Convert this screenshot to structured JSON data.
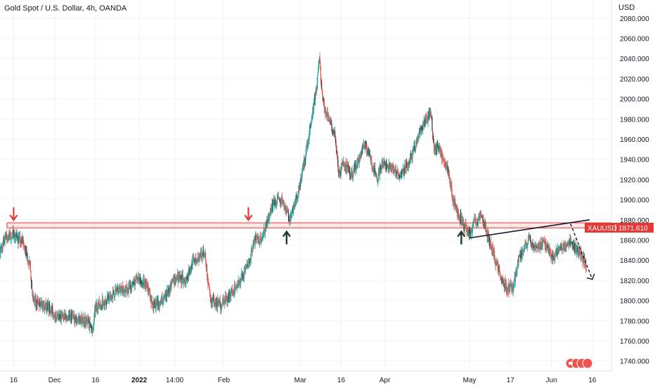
{
  "header": {
    "title": "Gold Spot / U.S. Dollar, 4h, OANDA",
    "currency": "USD"
  },
  "price_tag": {
    "symbol": "XAUUSD",
    "value": "1871.610"
  },
  "colors": {
    "up": "#26a69a",
    "down": "#ef5350",
    "candle_dark": "#2e3b36",
    "zone": "#e53935",
    "arrow_red": "#e53935",
    "arrow_dark": "#1b3a2b",
    "trendline": "#131722",
    "grid": "#f0f3fa",
    "axis_text": "#131722",
    "tag_bg": "#e53935"
  },
  "annotations": {
    "resistance_zone": {
      "low": 1872,
      "high": 1877
    },
    "trendline": {
      "from": {
        "x": "May 02",
        "y": 1862
      },
      "to": {
        "x": "Jun 15",
        "y": 1880
      }
    },
    "red_arrows": [
      {
        "x": "Nov 16",
        "y": 1877,
        "direction": "down"
      },
      {
        "x": "Feb 10",
        "y": 1877,
        "direction": "down"
      }
    ],
    "dark_arrows": [
      {
        "x": "Feb 24",
        "y": 1871,
        "direction": "up"
      },
      {
        "x": "Apr 29",
        "y": 1871,
        "direction": "up"
      }
    ],
    "projection": {
      "from": {
        "x": "Jun 08",
        "y": 1876
      },
      "to": {
        "x": "Jun 16",
        "y": 1821
      },
      "style": "dashed-arrow"
    }
  },
  "chart_data": {
    "type": "candlestick",
    "title": "Gold Spot / U.S. Dollar, 4h, OANDA",
    "ylabel": "USD",
    "ylim": [
      1730,
      2098
    ],
    "yticks": [
      2080,
      2060,
      2040,
      2020,
      2000,
      1980,
      1960,
      1940,
      1920,
      1900,
      1880,
      1860,
      1840,
      1820,
      1800,
      1780,
      1760,
      1740
    ],
    "xticks": [
      {
        "label": "16",
        "date": "2021-11-16"
      },
      {
        "label": "Dec",
        "date": "2021-12-01"
      },
      {
        "label": "16",
        "date": "2021-12-16"
      },
      {
        "label": "2022",
        "date": "2022-01-01"
      },
      {
        "label": "14:00",
        "date": "2022-01-14"
      },
      {
        "label": "Feb",
        "date": "2022-02-01"
      },
      {
        "label": "Mar",
        "date": "2022-03-01"
      },
      {
        "label": "16",
        "date": "2022-03-16"
      },
      {
        "label": "Apr",
        "date": "2022-04-01"
      },
      {
        "label": "May",
        "date": "2022-05-02"
      },
      {
        "label": "17",
        "date": "2022-05-17"
      },
      {
        "label": "Jun",
        "date": "2022-06-01"
      },
      {
        "label": "16",
        "date": "2022-06-16"
      }
    ],
    "xrange": [
      "2021-11-11",
      "2022-06-23"
    ],
    "close_path": [
      [
        "2021-11-11",
        1848
      ],
      [
        "2021-11-13",
        1862
      ],
      [
        "2021-11-16",
        1866
      ],
      [
        "2021-11-18",
        1860
      ],
      [
        "2021-11-19",
        1860
      ],
      [
        "2021-11-22",
        1835
      ],
      [
        "2021-11-23",
        1800
      ],
      [
        "2021-11-26",
        1795
      ],
      [
        "2021-11-29",
        1793
      ],
      [
        "2021-12-02",
        1782
      ],
      [
        "2021-12-06",
        1785
      ],
      [
        "2021-12-09",
        1782
      ],
      [
        "2021-12-13",
        1780
      ],
      [
        "2021-12-15",
        1770
      ],
      [
        "2021-12-16",
        1795
      ],
      [
        "2021-12-20",
        1800
      ],
      [
        "2021-12-24",
        1810
      ],
      [
        "2021-12-28",
        1812
      ],
      [
        "2021-12-31",
        1820
      ],
      [
        "2022-01-04",
        1815
      ],
      [
        "2022-01-06",
        1795
      ],
      [
        "2022-01-10",
        1800
      ],
      [
        "2022-01-14",
        1822
      ],
      [
        "2022-01-18",
        1820
      ],
      [
        "2022-01-21",
        1840
      ],
      [
        "2022-01-25",
        1848
      ],
      [
        "2022-01-27",
        1800
      ],
      [
        "2022-01-31",
        1795
      ],
      [
        "2022-02-03",
        1805
      ],
      [
        "2022-02-07",
        1820
      ],
      [
        "2022-02-10",
        1835
      ],
      [
        "2022-02-12",
        1858
      ],
      [
        "2022-02-15",
        1862
      ],
      [
        "2022-02-17",
        1880
      ],
      [
        "2022-02-19",
        1895
      ],
      [
        "2022-02-22",
        1900
      ],
      [
        "2022-02-24",
        1890
      ],
      [
        "2022-02-25",
        1880
      ],
      [
        "2022-02-28",
        1905
      ],
      [
        "2022-03-02",
        1930
      ],
      [
        "2022-03-04",
        1960
      ],
      [
        "2022-03-06",
        1995
      ],
      [
        "2022-03-07",
        2010
      ],
      [
        "2022-03-08",
        2040
      ],
      [
        "2022-03-09",
        2005
      ],
      [
        "2022-03-10",
        1990
      ],
      [
        "2022-03-11",
        1985
      ],
      [
        "2022-03-14",
        1960
      ],
      [
        "2022-03-15",
        1925
      ],
      [
        "2022-03-17",
        1935
      ],
      [
        "2022-03-20",
        1925
      ],
      [
        "2022-03-24",
        1950
      ],
      [
        "2022-03-25",
        1955
      ],
      [
        "2022-03-29",
        1920
      ],
      [
        "2022-03-31",
        1935
      ],
      [
        "2022-04-04",
        1930
      ],
      [
        "2022-04-07",
        1925
      ],
      [
        "2022-04-11",
        1945
      ],
      [
        "2022-04-14",
        1970
      ],
      [
        "2022-04-18",
        1985
      ],
      [
        "2022-04-19",
        1950
      ],
      [
        "2022-04-21",
        1950
      ],
      [
        "2022-04-24",
        1930
      ],
      [
        "2022-04-26",
        1900
      ],
      [
        "2022-04-28",
        1885
      ],
      [
        "2022-05-02",
        1865
      ],
      [
        "2022-05-04",
        1878
      ],
      [
        "2022-05-06",
        1885
      ],
      [
        "2022-05-08",
        1870
      ],
      [
        "2022-05-10",
        1855
      ],
      [
        "2022-05-12",
        1835
      ],
      [
        "2022-05-14",
        1820
      ],
      [
        "2022-05-16",
        1812
      ],
      [
        "2022-05-18",
        1812
      ],
      [
        "2022-05-20",
        1842
      ],
      [
        "2022-05-24",
        1862
      ],
      [
        "2022-05-26",
        1852
      ],
      [
        "2022-05-29",
        1857
      ],
      [
        "2022-05-31",
        1850
      ],
      [
        "2022-06-02",
        1842
      ],
      [
        "2022-06-04",
        1852
      ],
      [
        "2022-06-07",
        1855
      ],
      [
        "2022-06-08",
        1858
      ],
      [
        "2022-06-10",
        1850
      ],
      [
        "2022-06-12",
        1845
      ],
      [
        "2022-06-14",
        1832
      ]
    ]
  }
}
